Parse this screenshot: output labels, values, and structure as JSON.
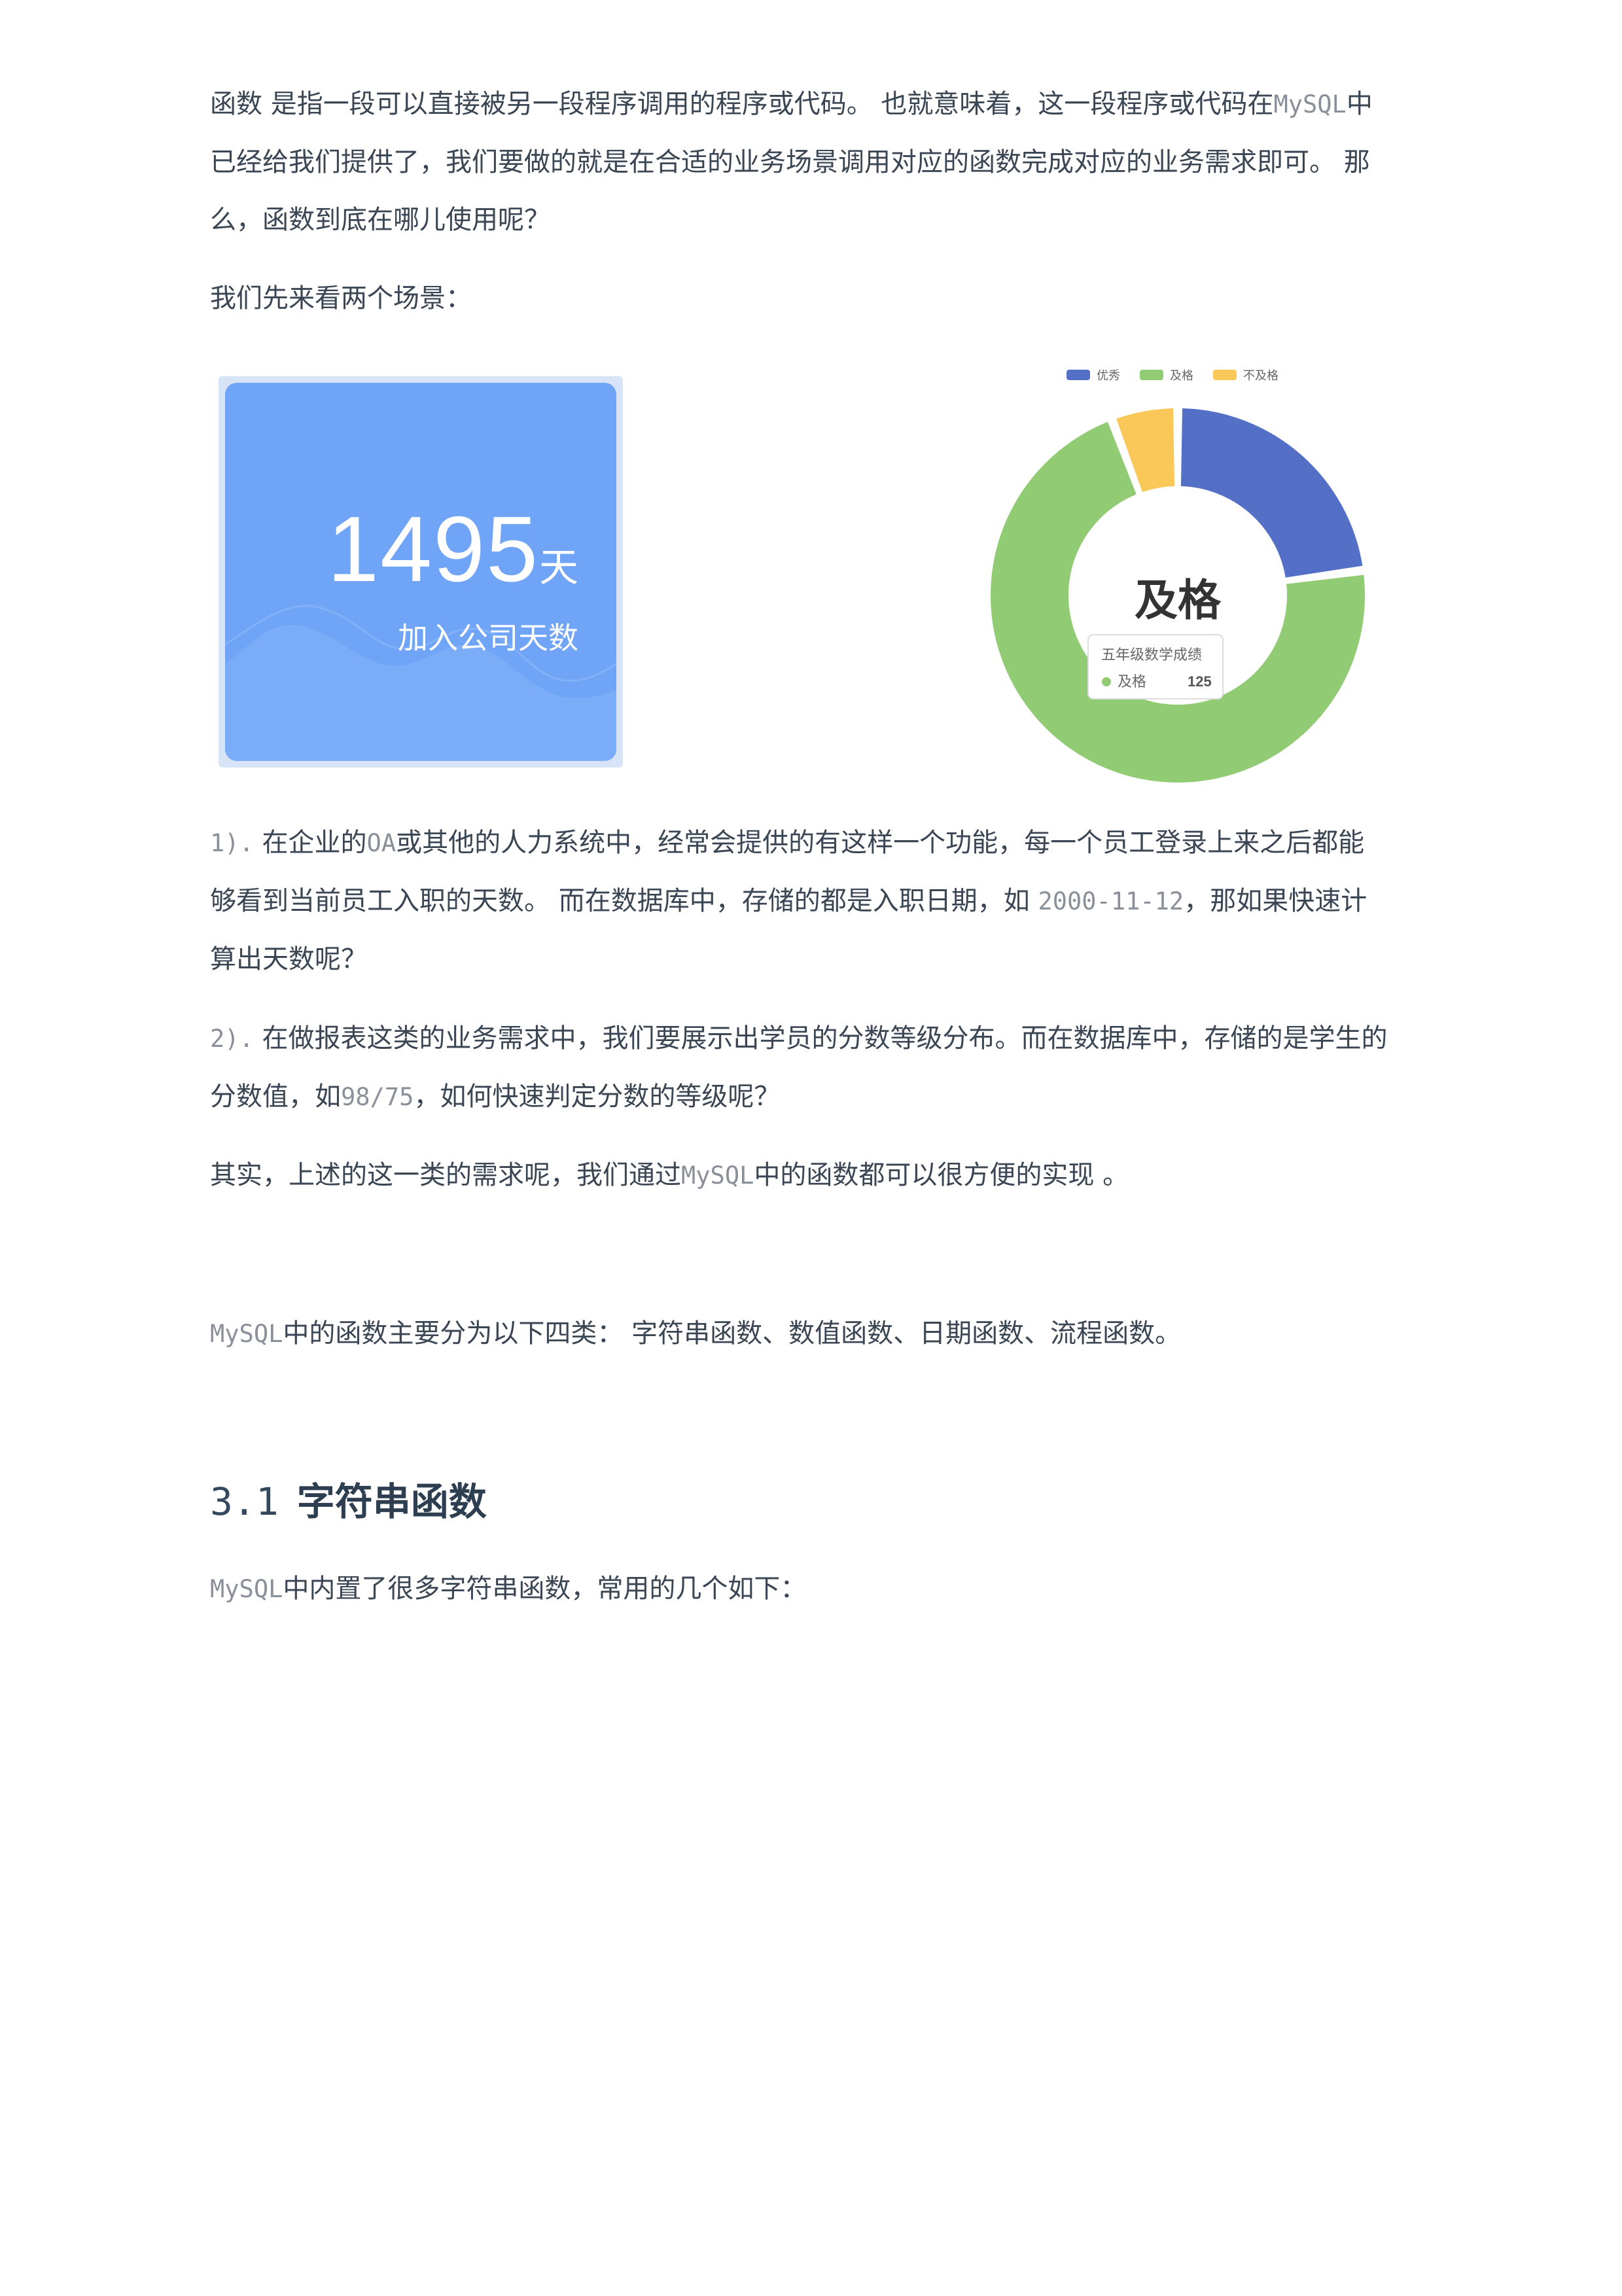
{
  "paragraphs": {
    "intro": {
      "l1a": "函数 是指一段可以直接被另一段程序调用的程序或代码。 也就意味着，这一段程序或代码在",
      "l1code": "MySQL",
      "l1b": "中",
      "l2": "已经给我们提供了，我们要做的就是在合适的业务场景调用对应的函数完成对应的业务需求即可。 那",
      "l3": "么，函数到底在哪儿使用呢？"
    },
    "scenarios_intro": "我们先来看两个场景：",
    "s1": {
      "num": "1).",
      "a": " 在企业的",
      "code": "OA",
      "b": "或其他的人力系统中，经常会提供的有这样一个功能，每一个员工登录上来之后都能",
      "l2a": "够看到当前员工入职的天数。 而在数据库中，存储的都是入职日期，如 ",
      "l2code": "2000-11-12",
      "l2b": "，那如果快速计",
      "l3": "算出天数呢？"
    },
    "s2": {
      "num": "2).",
      "a": " 在做报表这类的业务需求中，我们要展示出学员的分数等级分布。而在数据库中，存储的是学生的",
      "l2a": "分数值，如",
      "l2code": "98/75",
      "l2b": "，如何快速判定分数的等级呢？"
    },
    "summary": {
      "a": "其实，上述的这一类的需求呢，我们通过",
      "code": "MySQL",
      "b": "中的函数都可以很方便的实现 。"
    },
    "categories": {
      "code": "MySQL",
      "text": "中的函数主要分为以下四类： 字符串函数、数值函数、日期函数、流程函数。"
    },
    "section_heading": {
      "num": "3.1",
      "title": "字符串函数"
    },
    "section_intro": {
      "code": "MySQL",
      "text": "中内置了很多字符串函数，常用的几个如下："
    }
  },
  "stat_card": {
    "value": "1495",
    "unit": "天",
    "caption": "加入公司天数"
  },
  "chart_data": {
    "type": "pie",
    "legend": [
      "优秀",
      "及格",
      "不及格"
    ],
    "legend_position": "top",
    "colors": [
      "#5470c6",
      "#91cc75",
      "#fac858"
    ],
    "values": [
      40,
      125,
      10
    ],
    "center_label": "及格",
    "tooltip": {
      "title": "五年级数学成绩",
      "name": "及格",
      "value": "125"
    }
  }
}
